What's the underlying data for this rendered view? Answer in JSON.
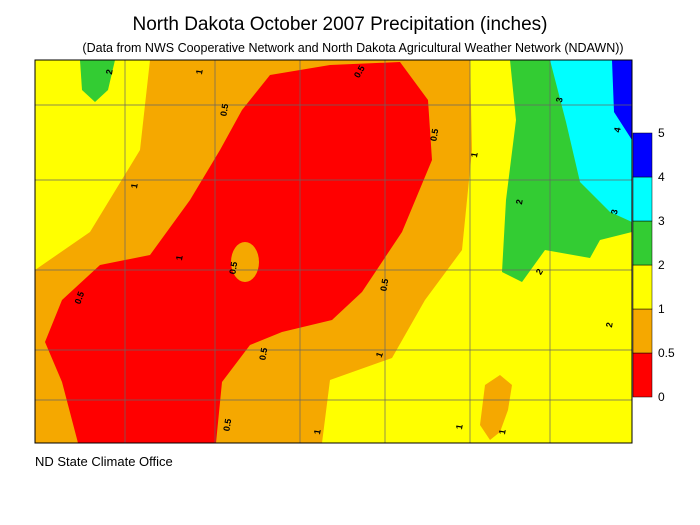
{
  "header": {
    "title": "North Dakota October 2007 Precipitation (inches)",
    "subtitle": "(Data from NWS Cooperative Network and North Dakota Agricultural Weather Network (NDAWN))"
  },
  "legend": {
    "ticks": [
      0,
      0.5,
      1,
      2,
      3,
      4,
      5
    ],
    "colors": [
      "#ff0000",
      "#f5a800",
      "#ffff00",
      "#33cc33",
      "#00ffff",
      "#0000ff"
    ]
  },
  "contour_labels": [
    "2",
    "1",
    "0.5",
    "0.5",
    "0.5",
    "1",
    "3",
    "4",
    "3",
    "2",
    "2",
    "1",
    "1",
    "0.5",
    "0.5",
    "0.5",
    "0.5",
    "0.5",
    "1",
    "1",
    "1",
    "1",
    "2"
  ],
  "footer": "ND State Climate Office"
}
